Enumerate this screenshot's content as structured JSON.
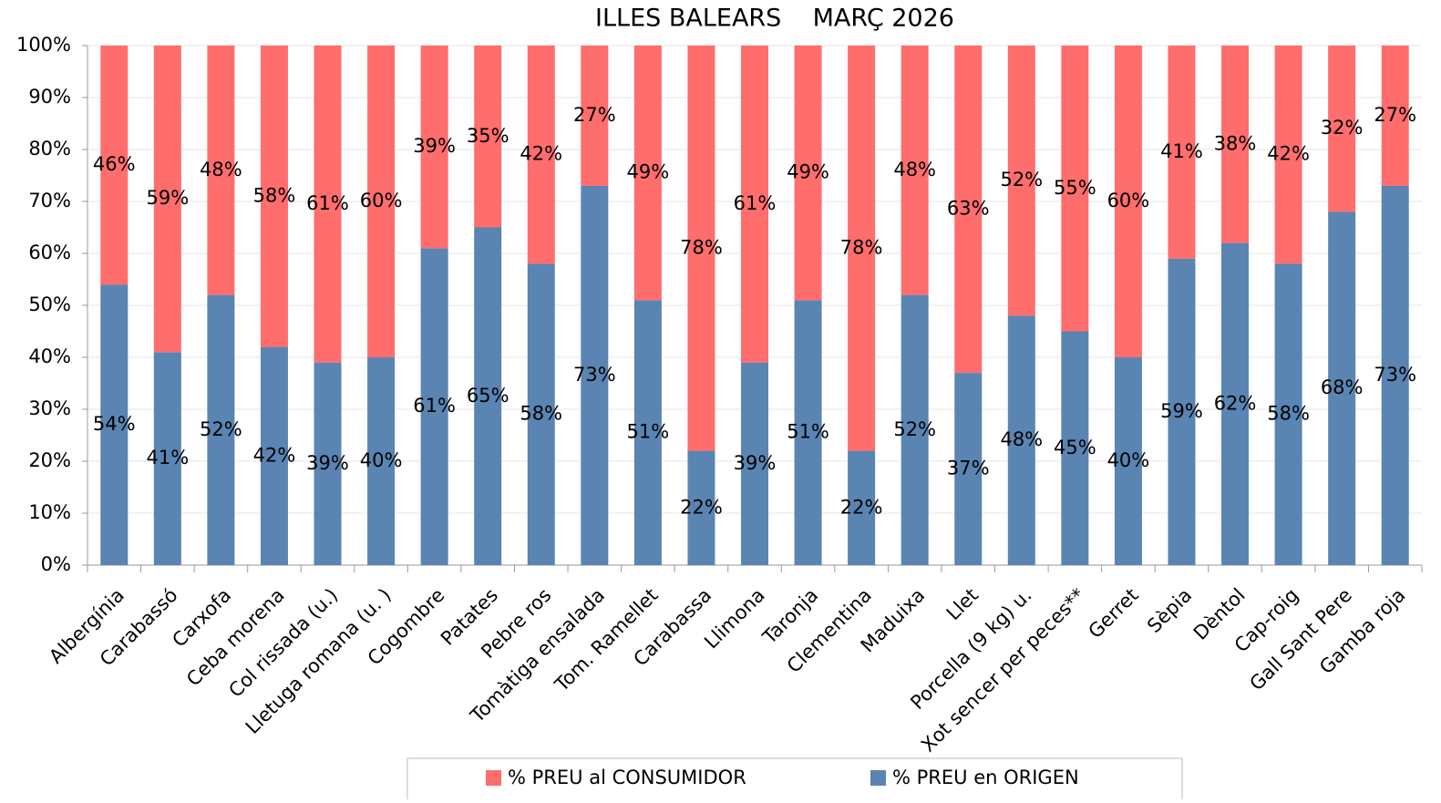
{
  "chart_data": {
    "type": "stacked_bar",
    "title": "ILLES BALEARS    MARÇ 2026",
    "categories": [
      "Albergínia",
      "Carabassó",
      "Carxofa",
      "Ceba morena",
      "Col rissada (u.)",
      "Lletuga romana (u. )",
      "Cogombre",
      "Patates",
      "Pebre ros",
      "Tomàtiga ensalada",
      "Tom. Ramellet",
      "Carabassa",
      "Llimona",
      "Taronja",
      "Clementina",
      "Maduixa",
      "Llet",
      "Porcella (9 kg) u.",
      "Xot sencer per peces**",
      "Gerret",
      "Sèpia",
      "Dèntol",
      "Cap-roig",
      "Gall Sant Pere",
      "Gamba roja"
    ],
    "series": [
      {
        "name": "% PREU en ORIGEN",
        "color": "#5a84b2",
        "values": [
          54,
          41,
          52,
          42,
          39,
          40,
          61,
          65,
          58,
          73,
          51,
          22,
          39,
          51,
          22,
          52,
          37,
          48,
          45,
          40,
          59,
          62,
          58,
          68,
          73
        ],
        "value_labels": [
          "54%",
          "41%",
          "52%",
          "42%",
          "39%",
          "40%",
          "61%",
          "65%",
          "58%",
          "73%",
          "51%",
          "22%",
          "39%",
          "51%",
          "22%",
          "52%",
          "37%",
          "48%",
          "45%",
          "40%",
          "59%",
          "62%",
          "58%",
          "68%",
          "73%"
        ]
      },
      {
        "name": "% PREU al CONSUMIDOR",
        "color": "#ff6d6d",
        "values": [
          46,
          59,
          48,
          58,
          61,
          60,
          39,
          35,
          42,
          27,
          49,
          78,
          61,
          49,
          78,
          48,
          63,
          52,
          55,
          60,
          41,
          38,
          42,
          32,
          27
        ],
        "value_labels": [
          "46%",
          "59%",
          "48%",
          "58%",
          "61%",
          "60%",
          "39%",
          "35%",
          "42%",
          "27%",
          "49%",
          "78%",
          "61%",
          "49%",
          "78%",
          "48%",
          "63%",
          "52%",
          "55%",
          "60%",
          "41%",
          "38%",
          "42%",
          "32%",
          "27%"
        ]
      }
    ],
    "ylim": [
      0,
      100
    ],
    "yticks": [
      {
        "value": 0,
        "label": "0%"
      },
      {
        "value": 10,
        "label": "10%"
      },
      {
        "value": 20,
        "label": "20%"
      },
      {
        "value": 30,
        "label": "30%"
      },
      {
        "value": 40,
        "label": "40%"
      },
      {
        "value": 50,
        "label": "50%"
      },
      {
        "value": 60,
        "label": "60%"
      },
      {
        "value": 70,
        "label": "70%"
      },
      {
        "value": 80,
        "label": "80%"
      },
      {
        "value": 90,
        "label": "90%"
      },
      {
        "value": 100,
        "label": "100%"
      }
    ],
    "grid": true,
    "legend": "bottom"
  }
}
